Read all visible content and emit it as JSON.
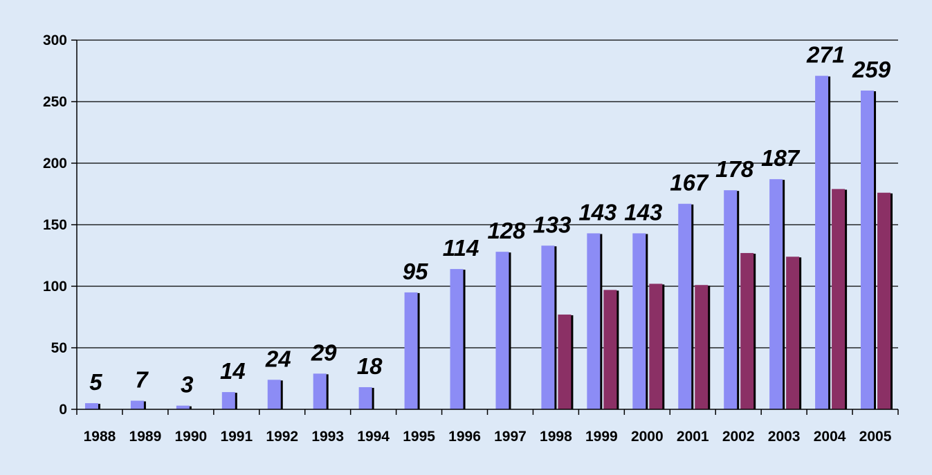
{
  "colors": {
    "background": "#dde9f7",
    "series_1": "#8c8cf5",
    "series_2": "#8b3065",
    "bar_shadow": "#000000",
    "gridline": "#000000"
  },
  "chart_data": {
    "type": "bar",
    "title": "",
    "xlabel": "",
    "ylabel": "",
    "ylim": [
      0,
      300
    ],
    "yticks": [
      0,
      50,
      100,
      150,
      200,
      250,
      300
    ],
    "grid": true,
    "legend": "none",
    "categories": [
      "1988",
      "1989",
      "1990",
      "1991",
      "1992",
      "1993",
      "1994",
      "1995",
      "1996",
      "1997",
      "1998",
      "1999",
      "2000",
      "2001",
      "2002",
      "2003",
      "2004",
      "2005"
    ],
    "series": [
      {
        "values": [
          5,
          7,
          3,
          14,
          24,
          29,
          18,
          95,
          114,
          128,
          133,
          143,
          143,
          167,
          178,
          187,
          271,
          259
        ],
        "data_labels": [
          "5",
          "7",
          "3",
          "14",
          "24",
          "29",
          "18",
          "95",
          "114",
          "128",
          "133",
          "143",
          "143",
          "167",
          "178",
          "187",
          "271",
          "259"
        ]
      },
      {
        "values": [
          0,
          0,
          0,
          0,
          0,
          0,
          0,
          0,
          0,
          0,
          77,
          97,
          102,
          101,
          127,
          124,
          179,
          176
        ]
      }
    ]
  }
}
